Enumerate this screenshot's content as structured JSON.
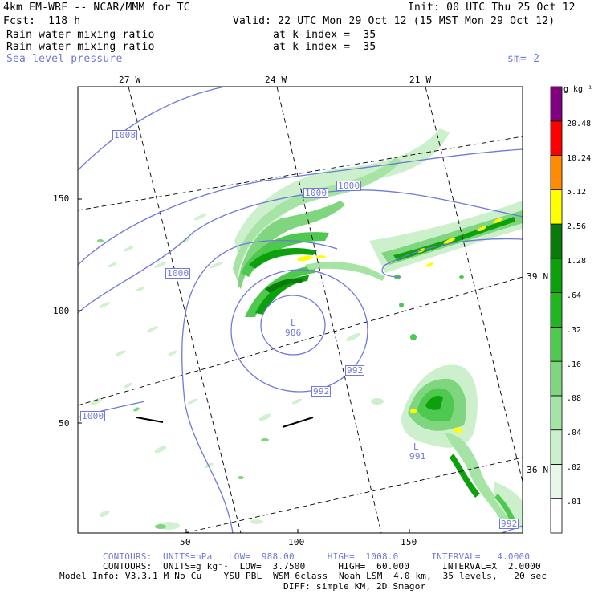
{
  "header": {
    "model_title": "4km EM-WRF -- NCAR/MMM for TC",
    "init": "Init: 00 UTC Thu 25 Oct 12",
    "forecast": "Fcst:  118 h",
    "valid": "Valid: 22 UTC Mon 29 Oct 12 (15 MST Mon 29 Oct 12)",
    "field1_name": "Rain water mixing ratio",
    "field1_level": "at k-index =  35",
    "field2_name": "Rain water mixing ratio",
    "field2_level": "at k-index =  35",
    "field3_name": "Sea-level pressure",
    "smoothing": "sm= 2"
  },
  "map": {
    "lon_labels": [
      "27 W",
      "24 W",
      "21 W"
    ],
    "lat_labels": [
      "39 N",
      "36 N"
    ],
    "x_ticks": [
      "50",
      "100",
      "150"
    ],
    "y_ticks": [
      "150",
      "100",
      "50"
    ],
    "pressure_labels": [
      "1008",
      "1000",
      "1000",
      "1000",
      "1000",
      "992",
      "992",
      "992"
    ],
    "lows": [
      {
        "symbol": "L",
        "value": "986"
      },
      {
        "symbol": "L",
        "value": "991"
      }
    ]
  },
  "colorbar": {
    "units": "g kg⁻¹",
    "levels": [
      "20.48",
      "10.24",
      "5.12",
      "2.56",
      "1.28",
      ".64",
      ".32",
      ".16",
      ".08",
      ".04",
      ".02",
      ".01"
    ],
    "colors": [
      "#ffffff",
      "#e8f8e8",
      "#ccf0cc",
      "#a6e4a6",
      "#7fd67f",
      "#4fc84f",
      "#22b522",
      "#0ca00c",
      "#0a7a0a",
      "#ffff00",
      "#ff8c00",
      "#ff0000",
      "#800080"
    ]
  },
  "footer": {
    "contours_slp": "CONTOURS:  UNITS=hPa   LOW=  988.00      HIGH=  1008.0      INTERVAL=   4.0000",
    "contours_rain": "CONTOURS:  UNITS=g kg⁻¹  LOW=  3.7500      HIGH=  60.000      INTERVAL=X  2.0000",
    "model_info": "Model Info: V3.3.1 M No Cu    YSU PBL  WSM 6class  Noah LSM  4.0 km,  35 levels,   20 sec",
    "diff_info": "DIFF: simple KM, 2D Smagor"
  }
}
